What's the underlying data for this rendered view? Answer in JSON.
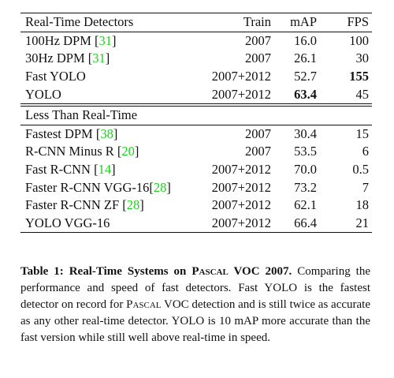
{
  "table": {
    "header": [
      "Real-Time Detectors",
      "Train",
      "mAP",
      "FPS"
    ],
    "sections": [
      {
        "rows": [
          {
            "name": [
              "100Hz DPM [",
              "31",
              "]"
            ],
            "train": "2007",
            "map": "16.0",
            "fps": "100"
          },
          {
            "name": [
              "30Hz DPM [",
              "31",
              "]"
            ],
            "train": "2007",
            "map": "26.1",
            "fps": "30"
          },
          {
            "name": [
              "Fast YOLO"
            ],
            "train": "2007+2012",
            "map": "52.7",
            "fps": "155",
            "bold": "fps"
          },
          {
            "name": [
              "YOLO"
            ],
            "train": "2007+2012",
            "map": "63.4",
            "fps": "45",
            "bold": "map"
          }
        ]
      },
      {
        "title": "Less Than Real-Time",
        "rows": [
          {
            "name": [
              "Fastest DPM [",
              "38",
              "]"
            ],
            "train": "2007",
            "map": "30.4",
            "fps": "15"
          },
          {
            "name": [
              "R-CNN Minus R [",
              "20",
              "]"
            ],
            "train": "2007",
            "map": "53.5",
            "fps": "6"
          },
          {
            "name": [
              "Fast R-CNN [",
              "14",
              "]"
            ],
            "train": "2007+2012",
            "map": "70.0",
            "fps": "0.5"
          },
          {
            "name": [
              "Faster R-CNN VGG-16[",
              "28",
              "]"
            ],
            "train": "2007+2012",
            "map": "73.2",
            "fps": "7"
          },
          {
            "name": [
              "Faster R-CNN ZF [",
              "28",
              "]"
            ],
            "train": "2007+2012",
            "map": "62.1",
            "fps": "18"
          },
          {
            "name": [
              "YOLO VGG-16"
            ],
            "train": "2007+2012",
            "map": "66.4",
            "fps": "21"
          }
        ]
      }
    ]
  },
  "caption": [
    {
      "text": "Table 1: Real-Time Systems on ",
      "style": "bold"
    },
    {
      "text": "Pascal",
      "style": "bold-sc"
    },
    {
      "text": " VOC 2007.",
      "style": "bold"
    },
    {
      "text": " Comparing the performance and speed of fast detectors. Fast YOLO is the fastest detector on record for ",
      "style": "plain"
    },
    {
      "text": "Pascal",
      "style": "sc"
    },
    {
      "text": " VOC detection and is still twice as accurate as any other real-time detector. YOLO is 10 mAP more accurate than the fast version while still well above real-time in speed.",
      "style": "plain"
    }
  ]
}
